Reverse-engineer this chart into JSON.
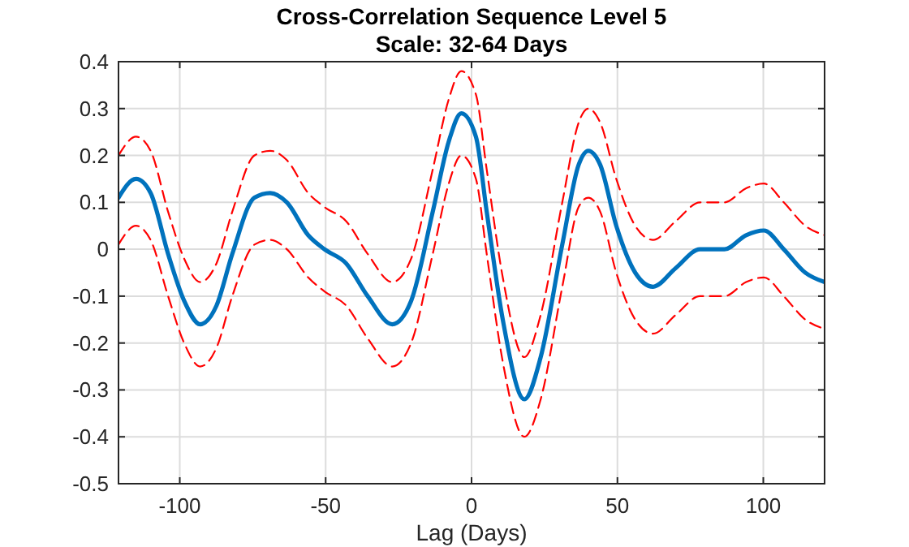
{
  "chart_data": {
    "type": "line",
    "title": "Cross-Correlation Sequence Level 5",
    "subtitle": "Scale: 32-64 Days",
    "xlabel": "Lag (Days)",
    "x": [
      -121,
      -115,
      -110,
      -104,
      -98.5,
      -93,
      -87.4,
      -82,
      -74.4,
      -69,
      -63.3,
      -56,
      -50.4,
      -43,
      -35.6,
      -27.2,
      -20.7,
      -13.3,
      -7.8,
      -3.5,
      1.5,
      5.2,
      10.7,
      18.1,
      23.7,
      31.1,
      36.7,
      40,
      44.1,
      49.6,
      56.1,
      62.2,
      70,
      78.3,
      86.7,
      94.1,
      100.2,
      107,
      114.4,
      121
    ],
    "series": [
      {
        "color": "#0072bd",
        "line_style": "solid",
        "values": [
          0.11,
          0.15,
          0.12,
          -0.01,
          -0.11,
          -0.16,
          -0.12,
          -0.01,
          0.11,
          0.12,
          0.1,
          0.03,
          0,
          -0.03,
          -0.1,
          -0.16,
          -0.11,
          0.08,
          0.23,
          0.29,
          0.24,
          0.08,
          -0.15,
          -0.32,
          -0.23,
          0.01,
          0.18,
          0.21,
          0.18,
          0.05,
          -0.05,
          -0.08,
          -0.04,
          0,
          0,
          0.03,
          0.04,
          0,
          -0.05,
          -0.07
        ]
      },
      {
        "color": "#ff0000",
        "line_style": "dashed",
        "values": [
          0.2,
          0.24,
          0.21,
          0.08,
          -0.02,
          -0.07,
          -0.03,
          0.08,
          0.2,
          0.21,
          0.19,
          0.12,
          0.09,
          0.06,
          -0.01,
          -0.07,
          -0.02,
          0.17,
          0.32,
          0.38,
          0.33,
          0.17,
          -0.06,
          -0.23,
          -0.14,
          0.1,
          0.27,
          0.3,
          0.27,
          0.15,
          0.05,
          0.02,
          0.06,
          0.1,
          0.1,
          0.13,
          0.14,
          0.1,
          0.05,
          0.03
        ]
      },
      {
        "color": "#ff0000",
        "line_style": "dashed",
        "values": [
          0.01,
          0.05,
          0.02,
          -0.1,
          -0.2,
          -0.25,
          -0.21,
          -0.1,
          0.01,
          0.02,
          0,
          -0.06,
          -0.09,
          -0.12,
          -0.19,
          -0.25,
          -0.2,
          -0.01,
          0.14,
          0.2,
          0.15,
          -0.01,
          -0.24,
          -0.4,
          -0.32,
          -0.08,
          0.09,
          0.11,
          0.08,
          -0.05,
          -0.15,
          -0.18,
          -0.14,
          -0.1,
          -0.1,
          -0.07,
          -0.06,
          -0.1,
          -0.15,
          -0.17
        ]
      }
    ],
    "xlim": [
      -121,
      121
    ],
    "xticks": [
      -100,
      -50,
      0,
      50,
      100
    ],
    "ylim": [
      -0.5,
      0.4
    ],
    "yticks": [
      -0.5,
      -0.4,
      -0.3,
      -0.2,
      -0.1,
      0,
      0.1,
      0.2,
      0.3,
      0.4
    ],
    "grid": true,
    "marker": "none"
  }
}
